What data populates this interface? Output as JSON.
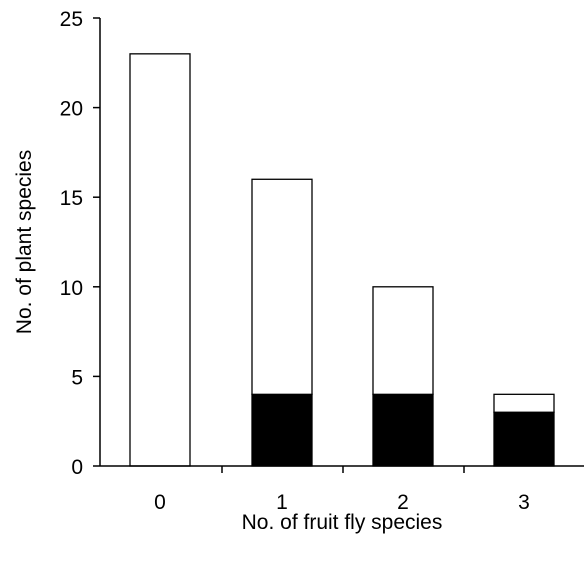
{
  "chart_data": {
    "type": "bar",
    "stacked": true,
    "categories": [
      "0",
      "1",
      "2",
      "3"
    ],
    "series": [
      {
        "values": [
          0,
          4,
          4,
          3
        ],
        "color": "#000000"
      },
      {
        "values": [
          23,
          12,
          6,
          1
        ],
        "color": "#ffffff"
      }
    ],
    "totals": [
      23,
      16,
      10,
      4
    ],
    "xlabel": "No. of fruit fly species",
    "ylabel": "No. of plant species",
    "ylim": [
      0,
      25
    ],
    "yticks": [
      "0",
      "5",
      "10",
      "15",
      "20",
      "25"
    ],
    "grid": false,
    "legend": "none"
  }
}
